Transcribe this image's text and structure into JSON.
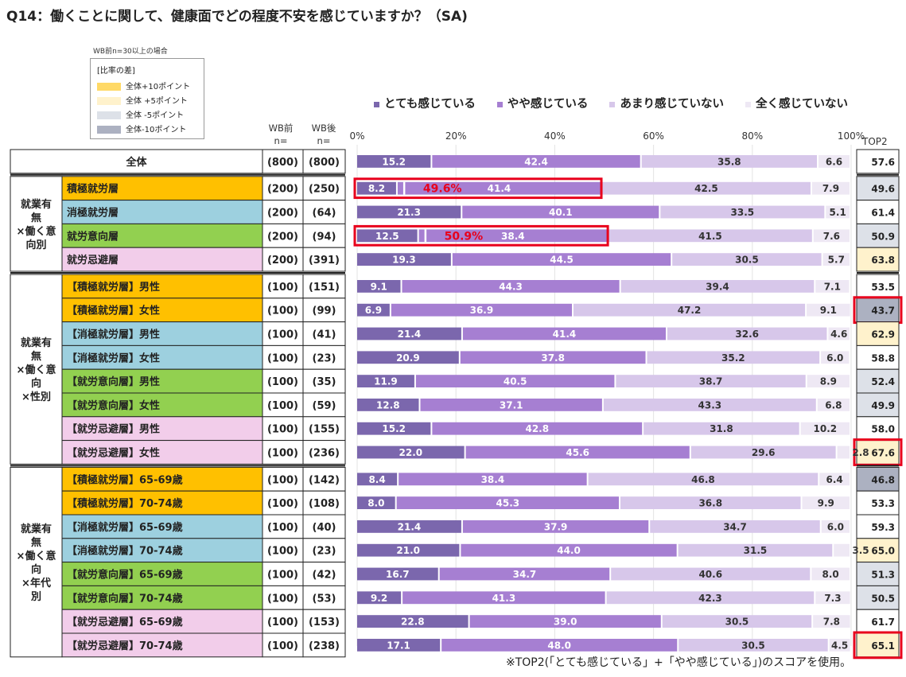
{
  "title": "Q14：働くことに関して、健康面でどの程度不安を感じていますか？（SA)",
  "note": "WB前n=30以上の場合",
  "swatch_legend": {
    "title": "[比率の差]",
    "items": [
      {
        "label": "全体+10ポイント",
        "color": "#ffd966"
      },
      {
        "label": "全体 +5ポイント",
        "color": "#fff2cc"
      },
      {
        "label": "全体 -5ポイント",
        "color": "#dde1e8"
      },
      {
        "label": "全体-10ポイント",
        "color": "#acb1c1"
      }
    ]
  },
  "col_headers": {
    "wb_before": "WB前\nn=",
    "wb_after": "WB後\nn=",
    "top2": "TOP2"
  },
  "footnote": "※TOP2(「とても感じている」+「やや感じている」)のスコアを使用。",
  "chart_data": {
    "type": "bar",
    "orientation": "horizontal",
    "stacked": true,
    "xlim": [
      0,
      100
    ],
    "x_ticks": [
      "0%",
      "20%",
      "40%",
      "60%",
      "80%",
      "100%"
    ],
    "legend_position": "top",
    "series": [
      {
        "name": "とても感じている",
        "color": "#7b67ad"
      },
      {
        "name": "やや感じている",
        "color": "#a67fd2"
      },
      {
        "name": "あまり感じていない",
        "color": "#d7c7ea"
      },
      {
        "name": "全く感じていない",
        "color": "#eee8f4"
      }
    ],
    "groups": [
      {
        "label": "",
        "rows": [
          0
        ]
      },
      {
        "label": "就業有\n無\n×働く意\n向別",
        "rows": [
          1,
          2,
          3,
          4
        ]
      },
      {
        "label": "就業有\n無\n×働く意\n向\n×性別",
        "rows": [
          5,
          6,
          7,
          8,
          9,
          10,
          11,
          12
        ]
      },
      {
        "label": "就業有\n無\n×働く意\n向\n×年代\n別",
        "rows": [
          13,
          14,
          15,
          16,
          17,
          18,
          19,
          20
        ]
      }
    ],
    "rows": [
      {
        "label": "全体",
        "color": "#ffffff",
        "n_before": "(800)",
        "n_after": "(800)",
        "values": [
          15.2,
          42.4,
          35.8,
          6.6
        ],
        "top2": "57.6",
        "top2_color": "#ffffff",
        "top2_boxed": false
      },
      {
        "label": "積極就労層",
        "color": "#ffc000",
        "n_before": "(200)",
        "n_after": "(250)",
        "values": [
          8.2,
          41.4,
          42.5,
          7.9
        ],
        "top2": "49.6",
        "top2_color": "#dde1e8",
        "top2_boxed": false,
        "callout": "49.6%"
      },
      {
        "label": "消極就労層",
        "color": "#9dd0df",
        "n_before": "(200)",
        "n_after": "(64)",
        "values": [
          21.3,
          40.1,
          33.5,
          5.1
        ],
        "top2": "61.4",
        "top2_color": "#ffffff",
        "top2_boxed": false
      },
      {
        "label": "就労意向層",
        "color": "#92d050",
        "n_before": "(200)",
        "n_after": "(94)",
        "values": [
          12.5,
          38.4,
          41.5,
          7.6
        ],
        "top2": "50.9",
        "top2_color": "#dde1e8",
        "top2_boxed": false,
        "callout": "50.9%"
      },
      {
        "label": "就労忌避層",
        "color": "#f2cdea",
        "n_before": "(200)",
        "n_after": "(391)",
        "values": [
          19.3,
          44.5,
          30.5,
          5.7
        ],
        "top2": "63.8",
        "top2_color": "#fff2cc",
        "top2_boxed": false
      },
      {
        "label": "【積極就労層】男性",
        "color": "#ffc000",
        "n_before": "(100)",
        "n_after": "(151)",
        "values": [
          9.1,
          44.3,
          39.4,
          7.1
        ],
        "top2": "53.5",
        "top2_color": "#ffffff",
        "top2_boxed": false
      },
      {
        "label": "【積極就労層】女性",
        "color": "#ffc000",
        "n_before": "(100)",
        "n_after": "(99)",
        "values": [
          6.9,
          36.9,
          47.2,
          9.1
        ],
        "top2": "43.7",
        "top2_color": "#acb1c1",
        "top2_boxed": true
      },
      {
        "label": "【消極就労層】男性",
        "color": "#9dd0df",
        "n_before": "(100)",
        "n_after": "(41)",
        "values": [
          21.4,
          41.4,
          32.6,
          4.6
        ],
        "top2": "62.9",
        "top2_color": "#fff2cc",
        "top2_boxed": false
      },
      {
        "label": "【消極就労層】女性",
        "color": "#9dd0df",
        "n_before": "(100)",
        "n_after": "(23)",
        "values": [
          20.9,
          37.8,
          35.2,
          6.0
        ],
        "top2": "58.8",
        "top2_color": "#ffffff",
        "top2_boxed": false
      },
      {
        "label": "【就労意向層】男性",
        "color": "#92d050",
        "n_before": "(100)",
        "n_after": "(35)",
        "values": [
          11.9,
          40.5,
          38.7,
          8.9
        ],
        "top2": "52.4",
        "top2_color": "#dde1e8",
        "top2_boxed": false
      },
      {
        "label": "【就労意向層】女性",
        "color": "#92d050",
        "n_before": "(100)",
        "n_after": "(59)",
        "values": [
          12.8,
          37.1,
          43.3,
          6.8
        ],
        "top2": "49.9",
        "top2_color": "#dde1e8",
        "top2_boxed": false
      },
      {
        "label": "【就労忌避層】男性",
        "color": "#f2cdea",
        "n_before": "(100)",
        "n_after": "(155)",
        "values": [
          15.2,
          42.8,
          31.8,
          10.2
        ],
        "top2": "58.0",
        "top2_color": "#ffffff",
        "top2_boxed": false
      },
      {
        "label": "【就労忌避層】女性",
        "color": "#f2cdea",
        "n_before": "(100)",
        "n_after": "(236)",
        "values": [
          22.0,
          45.6,
          29.6,
          2.8
        ],
        "top2": "67.6",
        "top2_color": "#fff2cc",
        "top2_boxed": true
      },
      {
        "label": "【積極就労層】65-69歳",
        "color": "#ffc000",
        "n_before": "(100)",
        "n_after": "(142)",
        "values": [
          8.4,
          38.4,
          46.8,
          6.4
        ],
        "top2": "46.8",
        "top2_color": "#acb1c1",
        "top2_boxed": false
      },
      {
        "label": "【積極就労層】70-74歳",
        "color": "#ffc000",
        "n_before": "(100)",
        "n_after": "(108)",
        "values": [
          8.0,
          45.3,
          36.8,
          9.9
        ],
        "top2": "53.3",
        "top2_color": "#ffffff",
        "top2_boxed": false
      },
      {
        "label": "【消極就労層】65-69歳",
        "color": "#9dd0df",
        "n_before": "(100)",
        "n_after": "(40)",
        "values": [
          21.4,
          37.9,
          34.7,
          6.0
        ],
        "top2": "59.3",
        "top2_color": "#ffffff",
        "top2_boxed": false
      },
      {
        "label": "【消極就労層】70-74歳",
        "color": "#9dd0df",
        "n_before": "(100)",
        "n_after": "(23)",
        "values": [
          21.0,
          44.0,
          31.5,
          3.5
        ],
        "top2": "65.0",
        "top2_color": "#fff2cc",
        "top2_boxed": false
      },
      {
        "label": "【就労意向層】65-69歳",
        "color": "#92d050",
        "n_before": "(100)",
        "n_after": "(42)",
        "values": [
          16.7,
          34.7,
          40.6,
          8.0
        ],
        "top2": "51.3",
        "top2_color": "#dde1e8",
        "top2_boxed": false
      },
      {
        "label": "【就労意向層】70-74歳",
        "color": "#92d050",
        "n_before": "(100)",
        "n_after": "(53)",
        "values": [
          9.2,
          41.3,
          42.3,
          7.3
        ],
        "top2": "50.5",
        "top2_color": "#dde1e8",
        "top2_boxed": false
      },
      {
        "label": "【就労忌避層】65-69歳",
        "color": "#f2cdea",
        "n_before": "(100)",
        "n_after": "(153)",
        "values": [
          22.8,
          39.0,
          30.5,
          7.8
        ],
        "top2": "61.7",
        "top2_color": "#ffffff",
        "top2_boxed": false
      },
      {
        "label": "【就労忌避層】70-74歳",
        "color": "#f2cdea",
        "n_before": "(100)",
        "n_after": "(238)",
        "values": [
          17.1,
          48.0,
          30.5,
          4.5
        ],
        "top2": "65.1",
        "top2_color": "#fff2cc",
        "top2_boxed": true
      }
    ]
  }
}
